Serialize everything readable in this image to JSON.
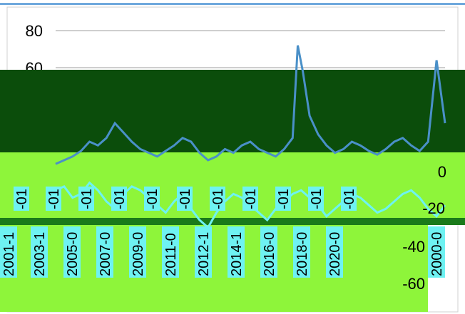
{
  "chart_data": {
    "type": "line",
    "title": "",
    "xlabel": "",
    "ylabel": "",
    "grid": true,
    "legend": "none",
    "colors": {
      "series_a": "#4a90c8",
      "series_b": "#2e8b3a",
      "band_dark": "#0b4d0b",
      "band_lime": "#8ef53a",
      "band_cyan": "#6ef2f2",
      "band_blue": "#2020ff",
      "grid": "#bdbdbd"
    },
    "top_chart": {
      "y_ticks": [
        "80",
        "60"
      ],
      "ylim": [
        0,
        80
      ]
    },
    "bottom_chart": {
      "y_ticks": [
        "0",
        "-20",
        "-40",
        "-60"
      ],
      "ylim": [
        -60,
        0
      ]
    },
    "x_ticks": [
      "2001-1",
      "2003-1",
      "2005-0",
      "2007-0",
      "2009-0",
      "2011-0",
      "2012-1",
      "2014-1",
      "2016-0",
      "2018-0",
      "2020-0",
      "2000-0"
    ],
    "x_top_ticks": [
      "-01",
      "-01",
      "-01",
      "-01",
      "-01",
      "-01",
      "-01",
      "-01",
      "-01",
      "-01",
      "-01"
    ],
    "series": [
      {
        "x": [
          2000.0,
          2000.5,
          2001.0,
          2001.5,
          2002.0,
          2002.5,
          2003.0,
          2003.5,
          2004.0,
          2004.5,
          2005.0,
          2005.5,
          2006.0,
          2006.5,
          2007.0,
          2007.5,
          2008.0,
          2008.5,
          2009.0,
          2009.5,
          2010.0,
          2010.5,
          2011.0,
          2011.5,
          2012.0,
          2012.5,
          2013.0,
          2013.5,
          2014.0,
          2014.3,
          2014.6,
          2015.0,
          2015.5,
          2016.0,
          2016.5,
          2017.0,
          2017.5,
          2018.0,
          2018.5,
          2019.0,
          2019.5,
          2020.0,
          2020.5,
          2021.0,
          2021.5,
          2022.0,
          2022.5,
          2023.0
        ],
        "values": [
          8,
          10,
          12,
          15,
          20,
          18,
          22,
          30,
          25,
          20,
          16,
          14,
          12,
          15,
          18,
          22,
          20,
          14,
          10,
          12,
          16,
          14,
          18,
          20,
          16,
          14,
          12,
          16,
          22,
          72,
          58,
          34,
          24,
          18,
          14,
          16,
          20,
          18,
          15,
          13,
          16,
          20,
          22,
          18,
          15,
          20,
          64,
          30
        ]
      },
      {
        "x": [
          2000.0,
          2000.5,
          2001.0,
          2001.5,
          2002.0,
          2002.5,
          2003.0,
          2003.5,
          2004.0,
          2004.5,
          2005.0,
          2005.5,
          2006.0,
          2006.5,
          2007.0,
          2007.5,
          2008.0,
          2008.5,
          2009.0,
          2009.5,
          2010.0,
          2010.5,
          2011.0,
          2011.5,
          2012.0,
          2012.5,
          2013.0,
          2013.5,
          2014.0,
          2014.5,
          2015.0,
          2015.5,
          2016.0,
          2016.5,
          2017.0,
          2017.5,
          2018.0,
          2018.5,
          2019.0,
          2019.5,
          2020.0,
          2020.5,
          2021.0,
          2021.5,
          2022.0,
          2022.5,
          2023.0
        ],
        "values": [
          -10,
          -8,
          -14,
          -12,
          -6,
          -10,
          -16,
          -20,
          -12,
          -8,
          -10,
          -14,
          -18,
          -22,
          -16,
          -12,
          -20,
          -26,
          -30,
          -22,
          -16,
          -12,
          -14,
          -18,
          -22,
          -26,
          -20,
          -16,
          -12,
          -10,
          -14,
          -18,
          -24,
          -20,
          -16,
          -12,
          -14,
          -18,
          -22,
          -20,
          -16,
          -12,
          -10,
          -14,
          -20,
          -24,
          -18
        ]
      }
    ]
  }
}
